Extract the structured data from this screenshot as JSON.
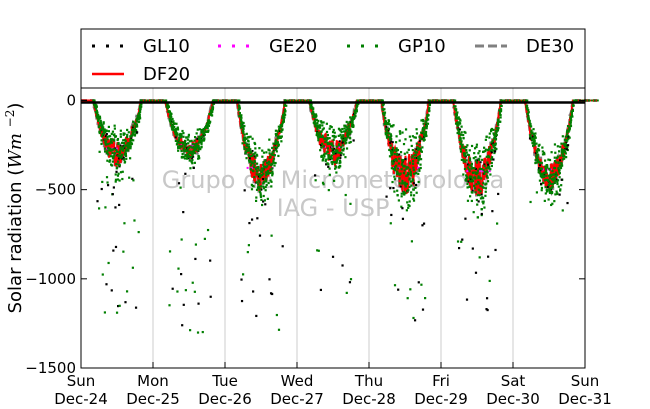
{
  "chart_data": {
    "type": "scatter",
    "ylabel": "Solar radiation (Wm^-2)",
    "ylabel_main": "Solar radiation",
    "ylabel_unit_base": "Wm",
    "ylabel_unit_exp": "−2",
    "ylim": [
      -1500,
      70
    ],
    "yticks": [
      0,
      -500,
      -1000,
      -1500
    ],
    "ytick_labels": [
      "0",
      "−500",
      "−1000",
      "−1500"
    ],
    "xlim": [
      "2014-12-24",
      "2014-12-31"
    ],
    "xtick_labels": [
      [
        "Sun",
        "Dec-24"
      ],
      [
        "Mon",
        "Dec-25"
      ],
      [
        "Tue",
        "Dec-26"
      ],
      [
        "Wed",
        "Dec-27"
      ],
      [
        "Thu",
        "Dec-28"
      ],
      [
        "Fri",
        "Dec-29"
      ],
      [
        "Sat",
        "Dec-30"
      ],
      [
        "Sun",
        "Dec-31"
      ]
    ],
    "grid": "vertical",
    "legend_position": "top",
    "watermark": [
      "Grupo de Micrometeorologia",
      "IAG - USP"
    ],
    "series": [
      {
        "name": "GL10",
        "color": "#000000",
        "style": "dotted"
      },
      {
        "name": "GE20",
        "color": "#ff00ff",
        "style": "dotted"
      },
      {
        "name": "GP10",
        "color": "#007f00",
        "style": "dotted"
      },
      {
        "name": "DE30",
        "color": "#808080",
        "style": "dashed"
      },
      {
        "name": "DF20",
        "color": "#ff0000",
        "style": "solid"
      }
    ],
    "daily_profile": [
      {
        "date": "2014-12-24",
        "noon_mean": -300,
        "spread": 120,
        "min": -1270
      },
      {
        "date": "2014-12-25",
        "noon_mean": -280,
        "spread": 80,
        "min": -1360
      },
      {
        "date": "2014-12-26",
        "noon_mean": -420,
        "spread": 150,
        "min": -1350
      },
      {
        "date": "2014-12-27",
        "noon_mean": -290,
        "spread": 140,
        "min": -1200
      },
      {
        "date": "2014-12-28",
        "noon_mean": -420,
        "spread": 200,
        "min": -1290
      },
      {
        "date": "2014-12-29",
        "noon_mean": -440,
        "spread": 180,
        "min": -1220
      },
      {
        "date": "2014-12-30",
        "noon_mean": -430,
        "spread": 130,
        "min": -650
      }
    ]
  }
}
